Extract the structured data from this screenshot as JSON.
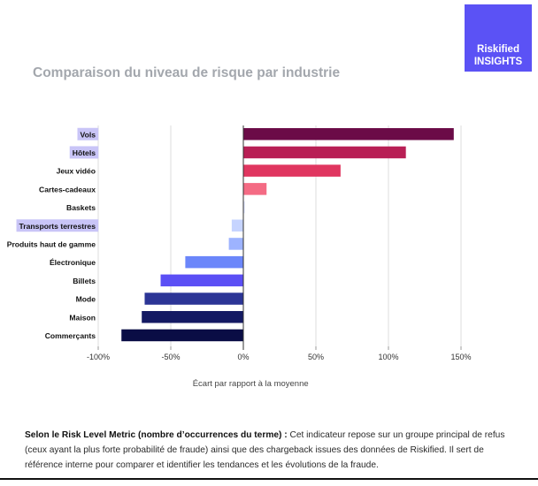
{
  "badge": {
    "line1": "Riskified",
    "line2": "INSIGHTS",
    "color": "#5b52f5"
  },
  "header": {
    "title": "Comparaison du niveau de risque par industrie"
  },
  "chart_data": {
    "type": "bar",
    "orientation": "horizontal",
    "title": "Comparaison du niveau de risque par industrie",
    "xlabel": "Écart par rapport à la moyenne",
    "ylabel": "",
    "xlim": [
      -100,
      150
    ],
    "xticks": [
      -100,
      -50,
      0,
      50,
      100,
      150
    ],
    "xtick_labels": [
      "-100%",
      "-50%",
      "0%",
      "50%",
      "100%",
      "150%"
    ],
    "grid": true,
    "categories": [
      "Vols",
      "Hôtels",
      "Jeux vidéo",
      "Cartes-cadeaux",
      "Baskets",
      "Transports terrestres",
      "Produits haut de gamme",
      "Électronique",
      "Billets",
      "Mode",
      "Maison",
      "Commerçants"
    ],
    "values": [
      145,
      112,
      67,
      16,
      1,
      -8,
      -10,
      -40,
      -57,
      -68,
      -70,
      -84
    ],
    "unit": "%",
    "highlighted_categories": [
      "Vols",
      "Hôtels",
      "Transports terrestres"
    ],
    "highlight_color": "#c9c5f7",
    "colors": [
      "#6b0b47",
      "#b81f55",
      "#e03660",
      "#f46b84",
      "#dde4ff",
      "#c6d4ff",
      "#9db3ff",
      "#6b86fa",
      "#5b4ff5",
      "#2c3596",
      "#141a63",
      "#0a0d45"
    ]
  },
  "note": {
    "bold": "Selon le Risk Level Metric (nombre d’occurrences du terme) :",
    "text": " Cet indicateur repose sur un groupe principal de refus (ceux ayant la plus forte probabilité de fraude) ainsi que des chargeback issues des données de Riskified. Il sert de référence interne pour comparer et identifier les tendances et les évolutions de la fraude."
  }
}
